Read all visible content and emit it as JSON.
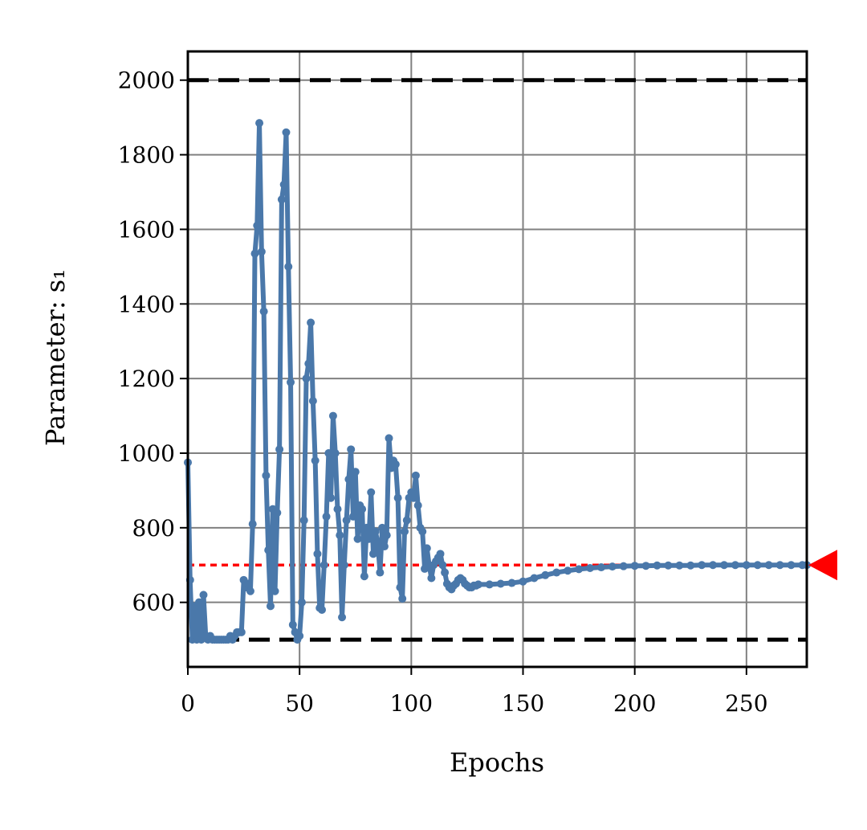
{
  "chart_data": {
    "type": "line",
    "x_label": "Epochs",
    "y_label": "Parameter: s₁",
    "xlim": [
      0,
      277
    ],
    "ylim": [
      427,
      2077
    ],
    "xticks": [
      0,
      50,
      100,
      150,
      200,
      250
    ],
    "yticks": [
      600,
      800,
      1000,
      1200,
      1400,
      1600,
      1800,
      2000
    ],
    "grid": true,
    "grid_color": "#808080",
    "hlines": [
      {
        "value": 2000,
        "color": "#000000",
        "style": "dashed"
      },
      {
        "value": 500,
        "color": "#000000",
        "style": "dashed"
      },
      {
        "value": 700,
        "color": "#ff0000",
        "style": "dotted",
        "marker": "triangle"
      }
    ],
    "series": [
      {
        "color": "#4a78aa",
        "x": [
          0,
          1,
          2,
          3,
          4,
          5,
          6,
          7,
          8,
          9,
          10,
          11,
          12,
          13,
          14,
          15,
          16,
          17,
          18,
          19,
          20,
          21,
          22,
          23,
          24,
          25,
          26,
          27,
          28,
          29,
          30,
          31,
          32,
          33,
          34,
          35,
          36,
          37,
          38,
          39,
          40,
          41,
          42,
          43,
          44,
          45,
          46,
          47,
          48,
          49,
          50,
          51,
          52,
          53,
          54,
          55,
          56,
          57,
          58,
          59,
          60,
          61,
          62,
          63,
          64,
          65,
          66,
          67,
          68,
          69,
          70,
          71,
          72,
          73,
          74,
          75,
          76,
          77,
          78,
          79,
          80,
          81,
          82,
          83,
          84,
          85,
          86,
          87,
          88,
          89,
          90,
          91,
          92,
          93,
          94,
          95,
          96,
          97,
          98,
          99,
          100,
          101,
          102,
          103,
          104,
          105,
          106,
          107,
          108,
          109,
          110,
          111,
          112,
          113,
          114,
          115,
          116,
          117,
          118,
          119,
          120,
          121,
          122,
          123,
          124,
          125,
          126,
          127,
          128,
          129,
          130,
          135,
          140,
          145,
          150,
          155,
          160,
          165,
          170,
          175,
          180,
          185,
          190,
          195,
          200,
          205,
          210,
          215,
          220,
          225,
          230,
          235,
          240,
          245,
          250,
          255,
          260,
          265,
          270,
          275,
          277
        ],
        "values": [
          975,
          660,
          500,
          590,
          500,
          600,
          500,
          620,
          510,
          500,
          510,
          500,
          500,
          500,
          500,
          500,
          500,
          500,
          500,
          510,
          500,
          510,
          520,
          520,
          520,
          660,
          640,
          650,
          630,
          810,
          1535,
          1610,
          1885,
          1540,
          1380,
          940,
          740,
          590,
          850,
          630,
          840,
          1010,
          1680,
          1720,
          1860,
          1500,
          1190,
          540,
          520,
          500,
          510,
          600,
          820,
          1200,
          1240,
          1350,
          1140,
          980,
          730,
          585,
          580,
          700,
          830,
          1000,
          880,
          1100,
          1000,
          850,
          780,
          560,
          700,
          820,
          930,
          1010,
          830,
          950,
          770,
          860,
          850,
          670,
          800,
          770,
          895,
          730,
          790,
          760,
          680,
          800,
          750,
          780,
          1040,
          960,
          980,
          970,
          880,
          640,
          610,
          790,
          820,
          880,
          895,
          880,
          940,
          860,
          800,
          790,
          690,
          745,
          700,
          665,
          700,
          710,
          720,
          730,
          700,
          680,
          650,
          640,
          635,
          645,
          650,
          660,
          665,
          660,
          650,
          645,
          640,
          640,
          645,
          645,
          648,
          648,
          650,
          652,
          656,
          665,
          673,
          680,
          685,
          689,
          692,
          694,
          696,
          697,
          698,
          698,
          699,
          699,
          699,
          699,
          700,
          700,
          700,
          700,
          700,
          700,
          700,
          700,
          700,
          700,
          700
        ]
      }
    ]
  }
}
